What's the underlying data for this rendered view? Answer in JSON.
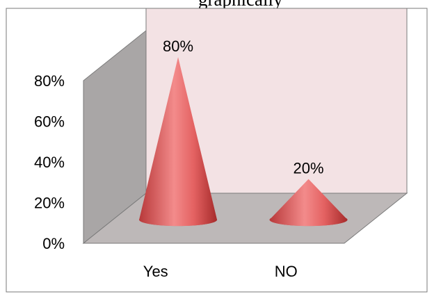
{
  "page": {
    "top_text": "graphically"
  },
  "chart_data": {
    "type": "bar",
    "style": "3d-cone",
    "categories": [
      "Yes",
      "NO"
    ],
    "values": [
      80,
      20
    ],
    "data_labels": [
      "80%",
      "20%"
    ],
    "yticks": [
      "0%",
      "20%",
      "40%",
      "60%",
      "80%"
    ],
    "ylim": [
      0,
      80
    ],
    "title": "",
    "xlabel": "",
    "ylabel": "",
    "grid": false,
    "legend": "none",
    "colors": {
      "cone_light": "#f08080",
      "cone_mid": "#e05a5a",
      "cone_dark": "#a82c2c",
      "back_wall": "#f3e2e4",
      "side_wall": "#a9a6a6",
      "floor": "#bdb8b8",
      "frame": "#7a7a7a"
    }
  }
}
